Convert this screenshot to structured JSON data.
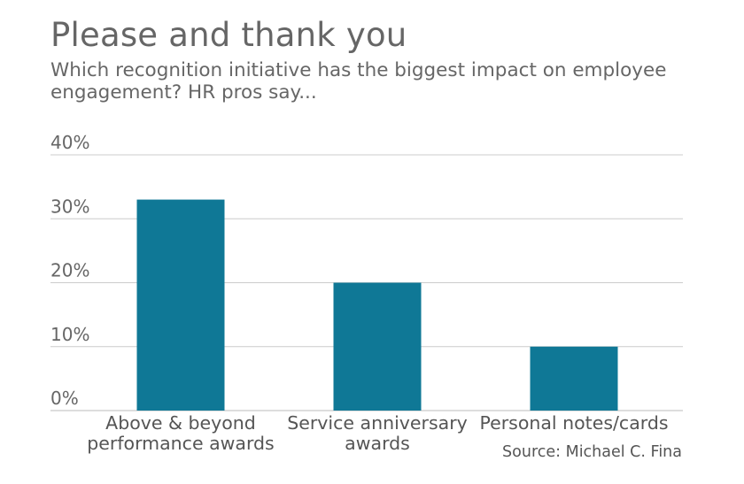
{
  "header": {
    "title": "Please and thank you",
    "subtitle": "Which recognition initiative has the biggest impact on employee engagement? HR pros say..."
  },
  "footer": {
    "source": "Source: Michael C. Fina"
  },
  "chart_data": {
    "type": "bar",
    "title": "Please and thank you",
    "subtitle": "Which recognition initiative has the biggest impact on employee engagement? HR pros say...",
    "categories": [
      [
        "Above & beyond",
        "performance awards"
      ],
      [
        "Service anniversary",
        "awards"
      ],
      [
        "Personal notes/cards"
      ]
    ],
    "values": [
      33,
      20,
      10
    ],
    "unit": "%",
    "ylim": [
      0,
      40
    ],
    "yticks": [
      0,
      10,
      20,
      30,
      40
    ],
    "ytick_labels": [
      "0%",
      "10%",
      "20%",
      "30%",
      "40%"
    ],
    "xlabel": "",
    "ylabel": "",
    "grid": true,
    "bar_color": "#0f7896",
    "grid_color": "#cccccc"
  }
}
